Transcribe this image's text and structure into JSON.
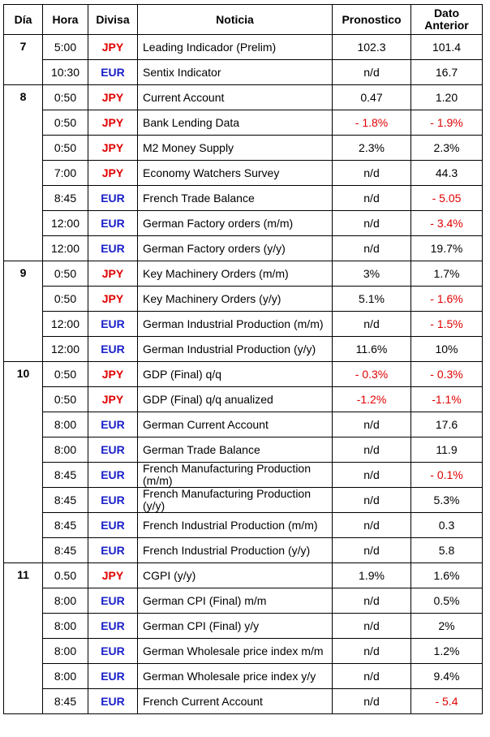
{
  "headers": {
    "dia": "Día",
    "hora": "Hora",
    "divisa": "Divisa",
    "noticia": "Noticia",
    "pronostico": "Pronostico",
    "dato_anterior_line1": "Dato",
    "dato_anterior_line2": "Anterior"
  },
  "colors": {
    "jpy": "#e00000",
    "eur": "#1a20c8",
    "negative": "#e00000"
  },
  "rows": [
    {
      "dia": "7",
      "hora": "5:00",
      "divisa": "JPY",
      "noticia": "Leading Indicador (Prelim)",
      "pronostico": "102.3",
      "anterior": "101.4"
    },
    {
      "dia": "",
      "hora": "10:30",
      "divisa": "EUR",
      "noticia": "Sentix Indicator",
      "pronostico": "n/d",
      "anterior": "16.7"
    },
    {
      "dia": "8",
      "hora": "0:50",
      "divisa": "JPY",
      "noticia": "Current Account",
      "pronostico": "0.47",
      "anterior": "1.20"
    },
    {
      "dia": "",
      "hora": "0:50",
      "divisa": "JPY",
      "noticia": "Bank Lending Data",
      "pronostico": "- 1.8%",
      "anterior": "- 1.9%"
    },
    {
      "dia": "",
      "hora": "0:50",
      "divisa": "JPY",
      "noticia": "M2 Money Supply",
      "pronostico": "2.3%",
      "anterior": "2.3%"
    },
    {
      "dia": "",
      "hora": "7:00",
      "divisa": "JPY",
      "noticia": "Economy Watchers Survey",
      "pronostico": "n/d",
      "anterior": "44.3"
    },
    {
      "dia": "",
      "hora": "8:45",
      "divisa": "EUR",
      "noticia": "French Trade Balance",
      "pronostico": "n/d",
      "anterior": "- 5.05"
    },
    {
      "dia": "",
      "hora": "12:00",
      "divisa": "EUR",
      "noticia": "German Factory orders (m/m)",
      "pronostico": "n/d",
      "anterior": "- 3.4%"
    },
    {
      "dia": "",
      "hora": "12:00",
      "divisa": "EUR",
      "noticia": "German Factory orders (y/y)",
      "pronostico": "n/d",
      "anterior": "19.7%"
    },
    {
      "dia": "9",
      "hora": "0:50",
      "divisa": "JPY",
      "noticia": "Key Machinery Orders (m/m)",
      "pronostico": "3%",
      "anterior": "1.7%"
    },
    {
      "dia": "",
      "hora": "0:50",
      "divisa": "JPY",
      "noticia": "Key Machinery Orders (y/y)",
      "pronostico": "5.1%",
      "anterior": "- 1.6%"
    },
    {
      "dia": "",
      "hora": "12:00",
      "divisa": "EUR",
      "noticia": "German Industrial Production (m/m)",
      "pronostico": "n/d",
      "anterior": "- 1.5%"
    },
    {
      "dia": "",
      "hora": "12:00",
      "divisa": "EUR",
      "noticia": "German Industrial Production (y/y)",
      "pronostico": "11.6%",
      "anterior": "10%"
    },
    {
      "dia": "10",
      "hora": "0:50",
      "divisa": "JPY",
      "noticia": "GDP (Final) q/q",
      "pronostico": "- 0.3%",
      "anterior": "- 0.3%"
    },
    {
      "dia": "",
      "hora": "0:50",
      "divisa": "JPY",
      "noticia": "GDP (Final) q/q anualized",
      "pronostico": "-1.2%",
      "anterior": "-1.1%"
    },
    {
      "dia": "",
      "hora": "8:00",
      "divisa": "EUR",
      "noticia": "German Current Account",
      "pronostico": "n/d",
      "anterior": "17.6"
    },
    {
      "dia": "",
      "hora": "8:00",
      "divisa": "EUR",
      "noticia": "German Trade Balance",
      "pronostico": "n/d",
      "anterior": "11.9"
    },
    {
      "dia": "",
      "hora": "8:45",
      "divisa": "EUR",
      "noticia": "French Manufacturing Production (m/m)",
      "pronostico": "n/d",
      "anterior": "- 0.1%"
    },
    {
      "dia": "",
      "hora": "8:45",
      "divisa": "EUR",
      "noticia": "French Manufacturing Production (y/y)",
      "pronostico": "n/d",
      "anterior": "5.3%"
    },
    {
      "dia": "",
      "hora": "8:45",
      "divisa": "EUR",
      "noticia": "French Industrial Production (m/m)",
      "pronostico": "n/d",
      "anterior": "0.3"
    },
    {
      "dia": "",
      "hora": "8:45",
      "divisa": "EUR",
      "noticia": "French Industrial Production (y/y)",
      "pronostico": "n/d",
      "anterior": "5.8"
    },
    {
      "dia": "11",
      "hora": "0.50",
      "divisa": "JPY",
      "noticia": "CGPI (y/y)",
      "pronostico": "1.9%",
      "anterior": "1.6%"
    },
    {
      "dia": "",
      "hora": "8:00",
      "divisa": "EUR",
      "noticia": "German CPI (Final) m/m",
      "pronostico": "n/d",
      "anterior": "0.5%"
    },
    {
      "dia": "",
      "hora": "8:00",
      "divisa": "EUR",
      "noticia": "German CPI (Final) y/y",
      "pronostico": "n/d",
      "anterior": "2%"
    },
    {
      "dia": "",
      "hora": "8:00",
      "divisa": "EUR",
      "noticia": "German Wholesale price index m/m",
      "pronostico": "n/d",
      "anterior": "1.2%"
    },
    {
      "dia": "",
      "hora": "8:00",
      "divisa": "EUR",
      "noticia": "German Wholesale price index y/y",
      "pronostico": "n/d",
      "anterior": "9.4%"
    },
    {
      "dia": "",
      "hora": "8:45",
      "divisa": "EUR",
      "noticia": "French Current Account",
      "pronostico": "n/d",
      "anterior": "- 5.4"
    }
  ]
}
